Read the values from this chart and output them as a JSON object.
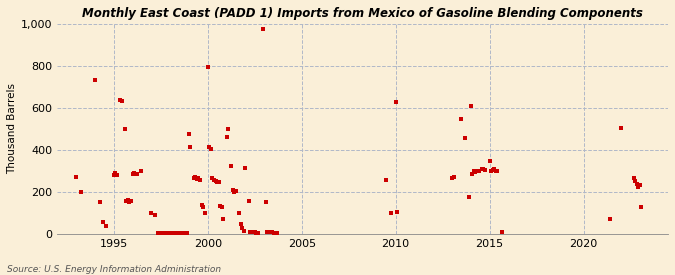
{
  "title": "Monthly East Coast (PADD 1) Imports from Mexico of Gasoline Blending Components",
  "ylabel": "Thousand Barrels",
  "source": "Source: U.S. Energy Information Administration",
  "bg_color": "#faefd8",
  "plot_bg_color": "#faefd8",
  "marker_color": "#cc0000",
  "marker_size": 6,
  "xlim": [
    1992.0,
    2024.5
  ],
  "ylim": [
    0,
    1000
  ],
  "yticks": [
    0,
    200,
    400,
    600,
    800,
    1000
  ],
  "xticks": [
    1995,
    2000,
    2005,
    2010,
    2015,
    2020
  ],
  "data_points": [
    [
      1993.0,
      270
    ],
    [
      1993.25,
      200
    ],
    [
      1994.0,
      735
    ],
    [
      1994.25,
      150
    ],
    [
      1994.42,
      55
    ],
    [
      1994.58,
      40
    ],
    [
      1995.0,
      280
    ],
    [
      1995.08,
      290
    ],
    [
      1995.17,
      280
    ],
    [
      1995.33,
      640
    ],
    [
      1995.42,
      635
    ],
    [
      1995.58,
      500
    ],
    [
      1995.67,
      155
    ],
    [
      1995.75,
      160
    ],
    [
      1995.83,
      150
    ],
    [
      1995.92,
      155
    ],
    [
      1996.0,
      285
    ],
    [
      1996.08,
      290
    ],
    [
      1996.25,
      285
    ],
    [
      1996.42,
      300
    ],
    [
      1997.0,
      100
    ],
    [
      1997.17,
      90
    ],
    [
      1997.33,
      5
    ],
    [
      1997.42,
      5
    ],
    [
      1997.5,
      5
    ],
    [
      1997.58,
      5
    ],
    [
      1997.67,
      5
    ],
    [
      1997.75,
      5
    ],
    [
      1997.83,
      5
    ],
    [
      1997.92,
      5
    ],
    [
      1998.0,
      5
    ],
    [
      1998.08,
      5
    ],
    [
      1998.17,
      5
    ],
    [
      1998.25,
      5
    ],
    [
      1998.33,
      5
    ],
    [
      1998.42,
      5
    ],
    [
      1998.5,
      5
    ],
    [
      1998.58,
      5
    ],
    [
      1998.67,
      5
    ],
    [
      1998.75,
      5
    ],
    [
      1998.83,
      5
    ],
    [
      1998.92,
      5
    ],
    [
      1999.0,
      475
    ],
    [
      1999.08,
      415
    ],
    [
      1999.25,
      265
    ],
    [
      1999.33,
      270
    ],
    [
      1999.42,
      260
    ],
    [
      1999.5,
      265
    ],
    [
      1999.58,
      255
    ],
    [
      1999.67,
      140
    ],
    [
      1999.75,
      130
    ],
    [
      1999.83,
      100
    ],
    [
      2000.0,
      795
    ],
    [
      2000.08,
      415
    ],
    [
      2000.17,
      405
    ],
    [
      2000.25,
      265
    ],
    [
      2000.33,
      255
    ],
    [
      2000.42,
      250
    ],
    [
      2000.5,
      248
    ],
    [
      2000.58,
      245
    ],
    [
      2000.67,
      135
    ],
    [
      2000.75,
      130
    ],
    [
      2000.83,
      70
    ],
    [
      2001.0,
      460
    ],
    [
      2001.08,
      500
    ],
    [
      2001.25,
      325
    ],
    [
      2001.33,
      210
    ],
    [
      2001.42,
      200
    ],
    [
      2001.5,
      205
    ],
    [
      2001.67,
      100
    ],
    [
      2001.75,
      45
    ],
    [
      2001.83,
      30
    ],
    [
      2001.92,
      15
    ],
    [
      2002.0,
      315
    ],
    [
      2002.17,
      155
    ],
    [
      2002.25,
      10
    ],
    [
      2002.33,
      10
    ],
    [
      2002.42,
      10
    ],
    [
      2002.5,
      10
    ],
    [
      2002.58,
      5
    ],
    [
      2002.67,
      5
    ],
    [
      2002.92,
      975
    ],
    [
      2003.08,
      150
    ],
    [
      2003.17,
      10
    ],
    [
      2003.25,
      10
    ],
    [
      2003.33,
      10
    ],
    [
      2003.42,
      10
    ],
    [
      2003.5,
      5
    ],
    [
      2003.58,
      5
    ],
    [
      2003.67,
      5
    ],
    [
      2009.5,
      255
    ],
    [
      2009.75,
      100
    ],
    [
      2010.0,
      630
    ],
    [
      2010.08,
      105
    ],
    [
      2013.0,
      265
    ],
    [
      2013.08,
      270
    ],
    [
      2013.5,
      545
    ],
    [
      2013.67,
      455
    ],
    [
      2013.92,
      175
    ],
    [
      2014.0,
      610
    ],
    [
      2014.08,
      285
    ],
    [
      2014.17,
      300
    ],
    [
      2014.25,
      295
    ],
    [
      2014.33,
      300
    ],
    [
      2014.42,
      300
    ],
    [
      2014.58,
      310
    ],
    [
      2014.67,
      310
    ],
    [
      2014.75,
      305
    ],
    [
      2015.0,
      345
    ],
    [
      2015.08,
      300
    ],
    [
      2015.17,
      305
    ],
    [
      2015.25,
      310
    ],
    [
      2015.33,
      300
    ],
    [
      2015.42,
      300
    ],
    [
      2015.67,
      10
    ],
    [
      2021.42,
      70
    ],
    [
      2022.0,
      505
    ],
    [
      2022.67,
      265
    ],
    [
      2022.75,
      250
    ],
    [
      2022.83,
      240
    ],
    [
      2022.92,
      225
    ],
    [
      2023.0,
      235
    ],
    [
      2023.08,
      130
    ]
  ]
}
